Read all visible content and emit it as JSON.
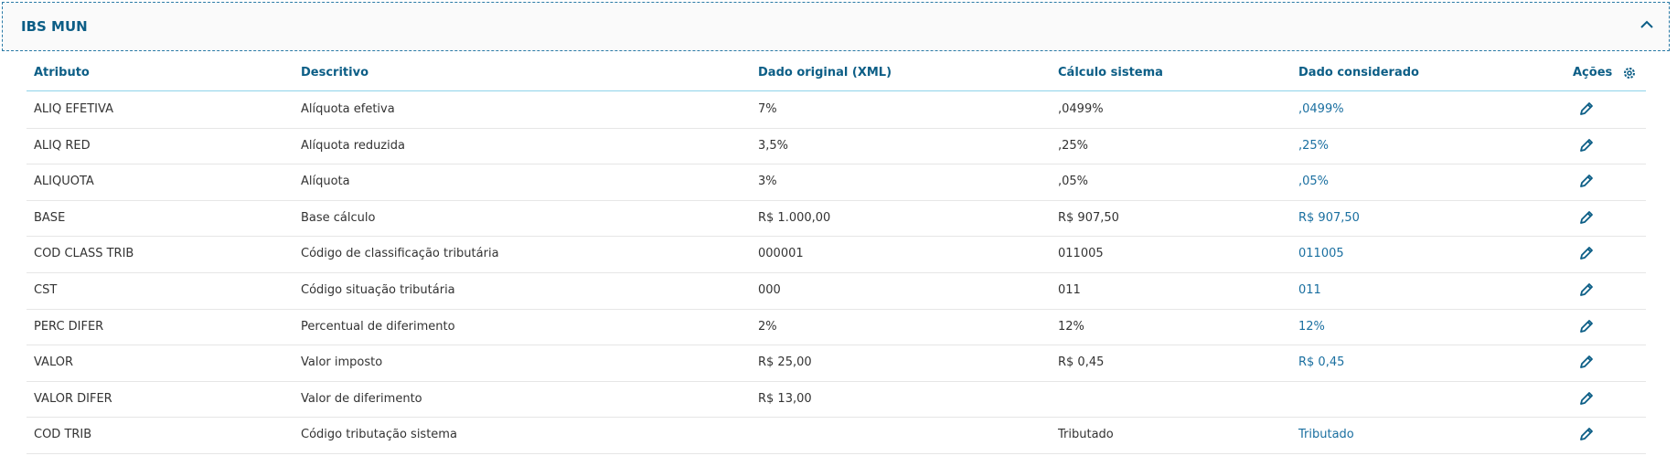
{
  "header": {
    "title": "IBS MUN"
  },
  "table": {
    "columns": [
      "Atributo",
      "Descritivo",
      "Dado original (XML)",
      "Cálculo sistema",
      "Dado considerado",
      "Ações"
    ],
    "rows": [
      [
        "ALIQ EFETIVA",
        "Alíquota efetiva",
        "7%",
        ",0499%",
        ",0499%"
      ],
      [
        "ALIQ RED",
        "Alíquota reduzida",
        "3,5%",
        ",25%",
        ",25%"
      ],
      [
        "ALIQUOTA",
        "Alíquota",
        "3%",
        ",05%",
        ",05%"
      ],
      [
        "BASE",
        "Base cálculo",
        "R$ 1.000,00",
        "R$ 907,50",
        "R$ 907,50"
      ],
      [
        "COD CLASS TRIB",
        "Código de classificação tributária",
        "000001",
        "011005",
        "011005"
      ],
      [
        "CST",
        "Código situação tributária",
        "000",
        "011",
        "011"
      ],
      [
        "PERC DIFER",
        "Percentual de diferimento",
        "2%",
        "12%",
        "12%"
      ],
      [
        "VALOR",
        "Valor imposto",
        "R$ 25,00",
        "R$ 0,45",
        "R$ 0,45"
      ],
      [
        "VALOR DIFER",
        "Valor de diferimento",
        "R$ 13,00",
        null,
        null
      ],
      [
        "COD TRIB",
        "Código tributação sistema",
        null,
        "Tributado",
        "Tributado"
      ]
    ]
  }
}
